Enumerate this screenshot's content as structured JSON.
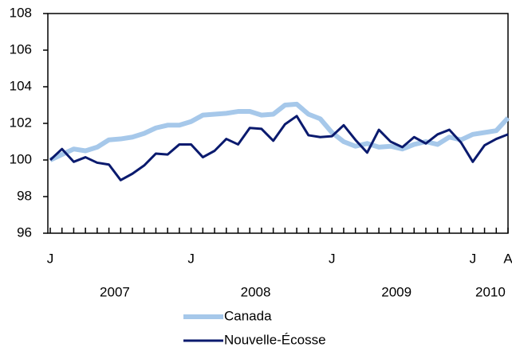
{
  "chart_data": {
    "type": "line",
    "categories": [
      "J",
      null,
      null,
      null,
      null,
      null,
      null,
      null,
      null,
      null,
      null,
      null,
      "J",
      null,
      null,
      null,
      null,
      null,
      null,
      null,
      null,
      null,
      null,
      null,
      "J",
      null,
      null,
      null,
      null,
      null,
      null,
      null,
      null,
      null,
      null,
      null,
      "J",
      null,
      null,
      "A"
    ],
    "year_labels": [
      "2007",
      "2008",
      "2009",
      "2010"
    ],
    "series": [
      {
        "name": "Canada",
        "color": "#a6c8ea",
        "width": 6,
        "values": [
          100.0,
          100.3,
          100.6,
          100.5,
          100.7,
          101.1,
          101.15,
          101.25,
          101.45,
          101.75,
          101.9,
          101.9,
          102.1,
          102.45,
          102.5,
          102.55,
          102.65,
          102.65,
          102.45,
          102.5,
          103.0,
          103.05,
          102.5,
          102.25,
          101.5,
          101.0,
          100.75,
          100.9,
          100.7,
          100.75,
          100.6,
          100.85,
          101.0,
          100.85,
          101.25,
          101.1,
          101.4,
          101.5,
          101.6,
          102.3
        ]
      },
      {
        "name": "Nouvelle-Écosse",
        "color": "#0a1a6e",
        "width": 3,
        "values": [
          100.0,
          100.6,
          99.9,
          100.15,
          99.85,
          99.75,
          98.9,
          99.25,
          99.7,
          100.35,
          100.3,
          100.85,
          100.85,
          100.15,
          100.5,
          101.15,
          100.85,
          101.75,
          101.7,
          101.05,
          101.95,
          102.4,
          101.35,
          101.25,
          101.3,
          101.9,
          101.1,
          100.4,
          101.65,
          101.0,
          100.7,
          101.25,
          100.9,
          101.4,
          101.65,
          100.95,
          99.9,
          100.8,
          101.15,
          101.4
        ]
      }
    ],
    "ylim": [
      96,
      108
    ],
    "yticks": [
      96,
      98,
      100,
      102,
      104,
      106,
      108
    ],
    "grid": false
  }
}
